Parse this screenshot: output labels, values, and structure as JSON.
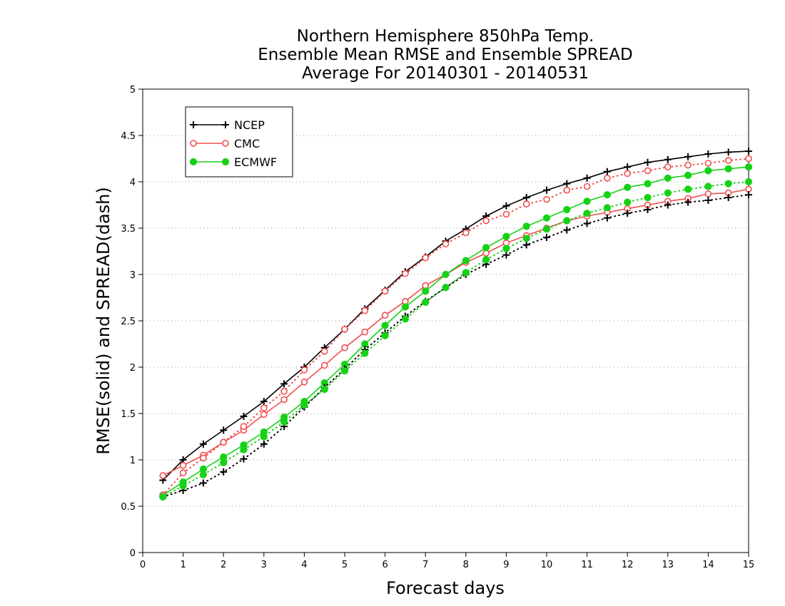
{
  "chart_data": {
    "type": "line",
    "title": [
      "Northern Hemisphere 850hPa Temp.",
      "Ensemble Mean RMSE and Ensemble SPREAD",
      "Average For 20140301 - 20140531"
    ],
    "xlabel": "Forecast days",
    "ylabel": "RMSE(solid) and SPREAD(dash)",
    "xlim": [
      0,
      15
    ],
    "ylim": [
      0,
      5
    ],
    "x_ticks": [
      "0",
      "1",
      "2",
      "3",
      "4",
      "5",
      "6",
      "7",
      "8",
      "9",
      "10",
      "11",
      "12",
      "13",
      "14",
      "15"
    ],
    "y_ticks": [
      "0",
      "0.5",
      "1",
      "1.5",
      "2",
      "2.5",
      "3",
      "3.5",
      "4",
      "4.5",
      "5"
    ],
    "grid": true,
    "legend_position": "top-left",
    "x": [
      0.5,
      1,
      1.5,
      2,
      2.5,
      3,
      3.5,
      4,
      4.5,
      5,
      5.5,
      6,
      6.5,
      7,
      7.5,
      8,
      8.5,
      9,
      9.5,
      10,
      10.5,
      11,
      11.5,
      12,
      12.5,
      13,
      13.5,
      14,
      14.5,
      15
    ],
    "series": [
      {
        "name": "NCEP",
        "style": "solid",
        "color": "#000000",
        "marker": "plus",
        "values": [
          0.78,
          1.0,
          1.17,
          1.32,
          1.47,
          1.63,
          1.82,
          2.0,
          2.21,
          2.41,
          2.63,
          2.83,
          3.03,
          3.19,
          3.36,
          3.49,
          3.63,
          3.74,
          3.83,
          3.91,
          3.98,
          4.04,
          4.11,
          4.16,
          4.21,
          4.24,
          4.27,
          4.3,
          4.32,
          4.33
        ]
      },
      {
        "name": "CMC",
        "style": "solid",
        "color": "#f24d4d",
        "marker": "open-circle",
        "values": [
          0.83,
          0.94,
          1.05,
          1.19,
          1.32,
          1.49,
          1.65,
          1.84,
          2.02,
          2.21,
          2.38,
          2.56,
          2.71,
          2.88,
          3.0,
          3.13,
          3.23,
          3.34,
          3.42,
          3.5,
          3.58,
          3.63,
          3.67,
          3.71,
          3.75,
          3.79,
          3.82,
          3.87,
          3.88,
          3.92
        ]
      },
      {
        "name": "ECMWF",
        "style": "solid",
        "color": "#16d216",
        "marker": "filled-circle",
        "values": [
          0.62,
          0.76,
          0.9,
          1.03,
          1.16,
          1.3,
          1.46,
          1.63,
          1.83,
          2.03,
          2.25,
          2.45,
          2.65,
          2.82,
          3.0,
          3.15,
          3.29,
          3.41,
          3.52,
          3.61,
          3.7,
          3.79,
          3.86,
          3.94,
          3.98,
          4.04,
          4.07,
          4.12,
          4.14,
          4.16
        ]
      },
      {
        "name": "",
        "style": "dash",
        "color": "#000000",
        "marker": "plus",
        "values": [
          0.6,
          0.67,
          0.75,
          0.87,
          1.01,
          1.17,
          1.36,
          1.57,
          1.78,
          1.98,
          2.19,
          2.37,
          2.55,
          2.71,
          2.86,
          3.0,
          3.11,
          3.21,
          3.32,
          3.4,
          3.48,
          3.55,
          3.61,
          3.66,
          3.7,
          3.75,
          3.78,
          3.8,
          3.83,
          3.86
        ]
      },
      {
        "name": "",
        "style": "dash",
        "color": "#f24d4d",
        "marker": "open-circle",
        "values": [
          0.62,
          0.86,
          1.02,
          1.19,
          1.36,
          1.56,
          1.74,
          1.97,
          2.17,
          2.41,
          2.61,
          2.82,
          3.01,
          3.18,
          3.33,
          3.45,
          3.58,
          3.65,
          3.76,
          3.81,
          3.91,
          3.95,
          4.04,
          4.09,
          4.12,
          4.16,
          4.18,
          4.2,
          4.23,
          4.25
        ]
      },
      {
        "name": "",
        "style": "dash",
        "color": "#16d216",
        "marker": "filled-circle",
        "values": [
          0.6,
          0.72,
          0.84,
          0.97,
          1.11,
          1.25,
          1.41,
          1.59,
          1.76,
          1.96,
          2.15,
          2.34,
          2.52,
          2.7,
          2.86,
          3.02,
          3.16,
          3.28,
          3.39,
          3.49,
          3.58,
          3.66,
          3.72,
          3.78,
          3.83,
          3.88,
          3.92,
          3.95,
          3.98,
          4.0
        ]
      }
    ]
  }
}
